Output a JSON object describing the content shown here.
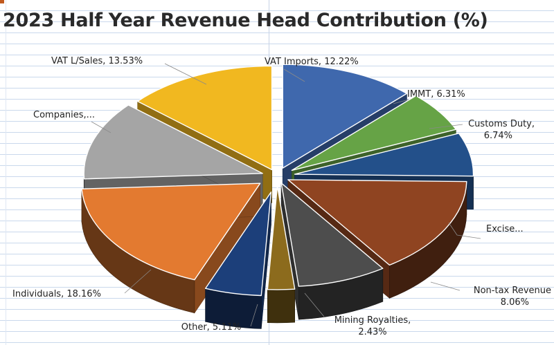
{
  "chart_data": {
    "type": "pie",
    "title": "2023 Half Year Revenue Head Contribution (%)",
    "exploded": true,
    "three_d": true,
    "slices": [
      {
        "name": "VAT Imports",
        "label": "VAT Imports, 12.22%",
        "value": 12.22,
        "color": "#3f68ad",
        "lines": [
          "VAT Imports, 12.22%"
        ],
        "anchor": "start"
      },
      {
        "name": "IMMT",
        "label": "IMMT, 6.31%",
        "value": 6.31,
        "color": "#66a346",
        "lines": [
          "IMMT, 6.31%"
        ],
        "anchor": "start"
      },
      {
        "name": "Customs Duty",
        "label": "Customs Duty, 6.74%",
        "value": 6.74,
        "color": "#23508a",
        "lines": [
          "Customs Duty,",
          "6.74%"
        ],
        "anchor": "end"
      },
      {
        "name": "Excise",
        "label": "Excise...",
        "value": 15.1,
        "color": "#8f4421",
        "lines": [
          "Excise..."
        ],
        "anchor": "start"
      },
      {
        "name": "Non-tax Revenue",
        "label": "Non-tax Revenue 8.06%",
        "value": 8.06,
        "color": "#4d4d4d",
        "lines": [
          "Non-tax Revenue",
          "8.06%"
        ],
        "anchor": "end"
      },
      {
        "name": "Mining Royalties",
        "label": "Mining Royalties, 2.43%",
        "value": 2.43,
        "color": "#8c6b1d",
        "lines": [
          "Mining Royalties,",
          "2.43%"
        ],
        "anchor": "middle"
      },
      {
        "name": "Other",
        "label": "Other, 5.11%",
        "value": 5.11,
        "color": "#1c3f7a",
        "lines": [
          "Other, 5.11%"
        ],
        "anchor": "middle"
      },
      {
        "name": "Individuals",
        "label": "Individuals, 18.16%",
        "value": 18.16,
        "color": "#e37a30",
        "lines": [
          "Individuals, 18.16%"
        ],
        "anchor": "start"
      },
      {
        "name": "Companies",
        "label": "Companies,...",
        "value": 12.31,
        "color": "#a5a5a5",
        "lines": [
          "Companies,..."
        ],
        "anchor": "start"
      },
      {
        "name": "VAT L/Sales",
        "label": "VAT L/Sales, 13.53%",
        "value": 13.53,
        "color": "#f1b820",
        "lines": [
          "VAT L/Sales, 13.53%"
        ],
        "anchor": "start"
      }
    ]
  }
}
